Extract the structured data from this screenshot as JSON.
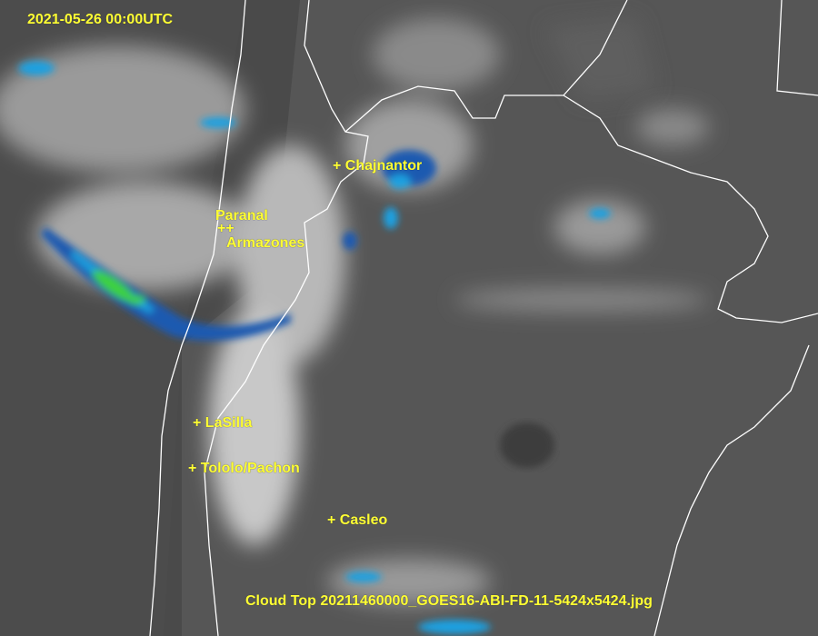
{
  "timestamp": "2021-05-26 00:00UTC",
  "caption": "Cloud Top 20211460000_GOES16-ABI-FD-11-5424x5424.jpg",
  "sites": [
    {
      "label": "+ Chajnantor"
    },
    {
      "label": "Paranal"
    },
    {
      "label": "++"
    },
    {
      "label": "Armazones"
    },
    {
      "label": "+ LaSilla"
    },
    {
      "label": "+ Tololo/Pachon"
    },
    {
      "label": "+ Casleo"
    }
  ],
  "colors": {
    "label": "#ffff33",
    "background": "#4a4a4a",
    "cloud": "#d8d8d8",
    "cold_top": "#1ea0e0",
    "coldest_top": "#3cd23c",
    "border": "#ffffff"
  }
}
